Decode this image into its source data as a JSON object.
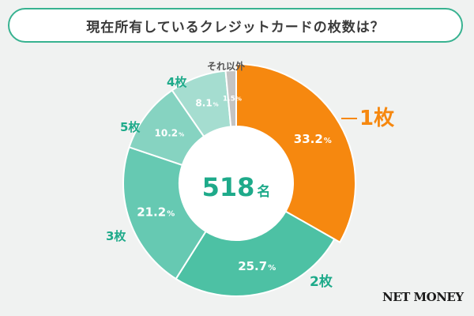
{
  "header": {
    "title": "現在所有しているクレジットカードの枚数は？"
  },
  "chart_data": {
    "type": "pie",
    "title": "現在所有しているクレジットカードの枚数は？",
    "center_label": {
      "value": "518",
      "unit": "名"
    },
    "categories": [
      "1枚",
      "2枚",
      "3枚",
      "5枚",
      "4枚",
      "それ以外"
    ],
    "values": [
      33.2,
      25.7,
      21.2,
      10.2,
      8.1,
      1.5
    ],
    "value_labels": [
      "33.2",
      "25.7",
      "21.2",
      "10.2",
      "8.1",
      "1.5"
    ],
    "value_unit": "%",
    "colors": [
      "#f6880f",
      "#4dc1a4",
      "#66c9b2",
      "#86d3c1",
      "#a5ddd0",
      "#c4c4c4"
    ]
  },
  "brand": {
    "logo_text": "NET MONEY"
  }
}
